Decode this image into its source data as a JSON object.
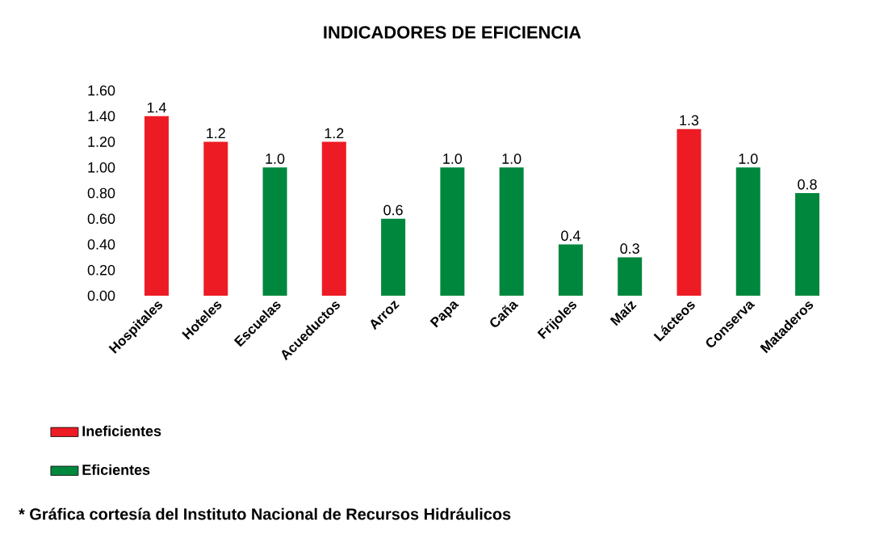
{
  "chart_data": {
    "type": "bar",
    "title": "INDICADORES DE EFICIENCIA",
    "categories": [
      "Hospitales",
      "Hoteles",
      "Escuelas",
      "Acueductos",
      "Arroz",
      "Papa",
      "Caña",
      "Frijoles",
      "Maíz",
      "Lácteos",
      "Conserva",
      "Mataderos"
    ],
    "series": [
      {
        "name": "Ineficientes",
        "color": "#ed1c24",
        "values": [
          1.4,
          1.2,
          null,
          1.2,
          null,
          null,
          null,
          null,
          null,
          1.3,
          null,
          null
        ],
        "value_labels": [
          "1.4",
          "1.2",
          null,
          "1.2",
          null,
          null,
          null,
          null,
          null,
          "1.3",
          null,
          null
        ]
      },
      {
        "name": "Eficientes",
        "color": "#00873e",
        "values": [
          null,
          null,
          1.0,
          null,
          0.6,
          1.0,
          1.0,
          0.4,
          0.3,
          null,
          1.0,
          0.8
        ],
        "value_labels": [
          null,
          null,
          "1.0",
          null,
          "0.6",
          "1.0",
          "1.0",
          "0.4",
          "0.3",
          null,
          "1.0",
          "0.8"
        ]
      }
    ],
    "ylim": [
      0,
      1.6
    ],
    "yticks": [
      {
        "value": 0,
        "label": "0.00"
      },
      {
        "value": 0.2,
        "label": "0.20"
      },
      {
        "value": 0.4,
        "label": "0.40"
      },
      {
        "value": 0.6,
        "label": "0.60"
      },
      {
        "value": 0.8,
        "label": "0.80"
      },
      {
        "value": 1.0,
        "label": "1.00"
      },
      {
        "value": 1.2,
        "label": "1.20"
      },
      {
        "value": 1.4,
        "label": "1.40"
      },
      {
        "value": 1.6,
        "label": "1.60"
      }
    ],
    "legend": "bottom left",
    "annotations": [
      "* Gráfica cortesía del Instituto Nacional de Recursos Hidráulicos"
    ]
  }
}
